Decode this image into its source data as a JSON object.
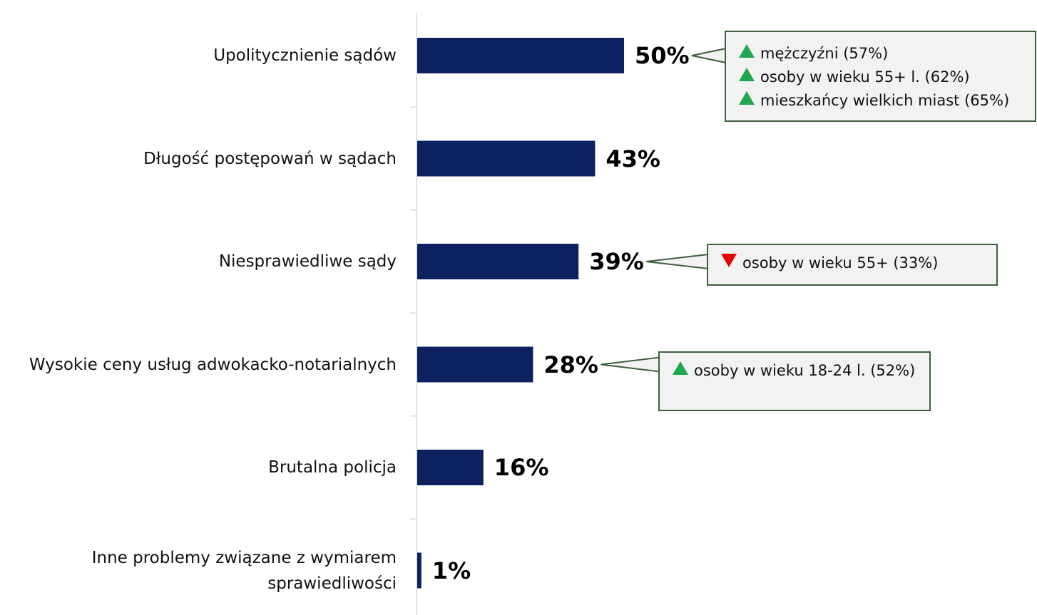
{
  "chart_data": {
    "type": "bar",
    "orientation": "horizontal",
    "categories": [
      "Upolitycznienie sądów",
      "Długość postępowań w sądach",
      "Niesprawiedliwe sądy",
      "Wysokie ceny usług adwokacko-notarialnych",
      "Brutalna policja",
      "Inne problemy związane z wymiarem\nsprawiedliwości"
    ],
    "values": [
      50,
      43,
      39,
      28,
      16,
      1
    ],
    "value_labels": [
      "50%",
      "43%",
      "39%",
      "28%",
      "16%",
      "1%"
    ],
    "color": "#0d2160",
    "xlim": [
      0,
      100
    ],
    "annotations": [
      {
        "category": "Upolitycznienie sądów",
        "items": [
          {
            "direction": "up",
            "text": "mężczyźni (57%)"
          },
          {
            "direction": "up",
            "text": "osoby w wieku 55+ l. (62%)"
          },
          {
            "direction": "up",
            "text": "mieszkańcy wielkich miast (65%)"
          }
        ]
      },
      {
        "category": "Niesprawiedliwe sądy",
        "items": [
          {
            "direction": "down",
            "text": "osoby w wieku 55+ (33%)"
          }
        ]
      },
      {
        "category": "Wysokie ceny usług adwokacko-notarialnych",
        "items": [
          {
            "direction": "up",
            "text": "osoby w wieku 18-24 l. (52%)"
          }
        ]
      }
    ]
  }
}
